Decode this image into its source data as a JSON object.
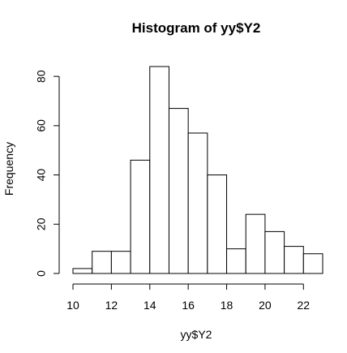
{
  "chart_data": {
    "type": "bar",
    "subtype": "histogram",
    "title": "Histogram of yy$Y2",
    "xlabel": "yy$Y2",
    "ylabel": "Frequency",
    "bins": [
      {
        "start": 10,
        "end": 11,
        "count": 2
      },
      {
        "start": 11,
        "end": 12,
        "count": 9
      },
      {
        "start": 12,
        "end": 13,
        "count": 9
      },
      {
        "start": 13,
        "end": 14,
        "count": 46
      },
      {
        "start": 14,
        "end": 15,
        "count": 84
      },
      {
        "start": 15,
        "end": 16,
        "count": 67
      },
      {
        "start": 16,
        "end": 17,
        "count": 57
      },
      {
        "start": 17,
        "end": 18,
        "count": 40
      },
      {
        "start": 18,
        "end": 19,
        "count": 10
      },
      {
        "start": 19,
        "end": 20,
        "count": 24
      },
      {
        "start": 20,
        "end": 21,
        "count": 17
      },
      {
        "start": 21,
        "end": 22,
        "count": 11
      },
      {
        "start": 22,
        "end": 23,
        "count": 8
      }
    ],
    "xlim": [
      10,
      23
    ],
    "ylim": [
      0,
      84
    ],
    "x_ticks": [
      10,
      12,
      14,
      16,
      18,
      20,
      22
    ],
    "x_tick_labels": [
      "10",
      "12",
      "14",
      "16",
      "18",
      "20",
      "22"
    ],
    "y_ticks": [
      0,
      20,
      40,
      60,
      80
    ],
    "y_tick_labels": [
      "0",
      "20",
      "40",
      "60",
      "80"
    ],
    "grid": false,
    "bar_fill": "#ffffff",
    "bar_stroke": "#000000"
  }
}
